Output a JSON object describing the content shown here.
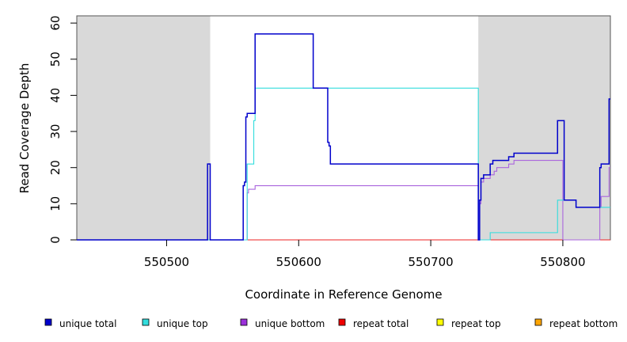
{
  "chart_data": {
    "type": "line",
    "xlabel": "Coordinate in Reference Genome",
    "ylabel": "Read Coverage Depth",
    "xlim": [
      550432,
      550836
    ],
    "ylim": [
      0,
      62
    ],
    "x_ticks": [
      550500,
      550600,
      550700,
      550800
    ],
    "y_ticks": [
      0,
      10,
      20,
      30,
      40,
      50,
      60
    ],
    "shaded_regions": [
      [
        550432,
        550533
      ],
      [
        550736,
        550836
      ]
    ],
    "shade_color": "#d9d9d9",
    "series": [
      {
        "name": "unique total",
        "color": "#0000cc",
        "steps": [
          [
            550432,
            0
          ],
          [
            550557,
            0
          ],
          [
            550558,
            15
          ],
          [
            550559,
            16
          ],
          [
            550560,
            34
          ],
          [
            550561,
            35
          ],
          [
            550567,
            57
          ],
          [
            550611,
            42
          ],
          [
            550622,
            27
          ],
          [
            550623,
            26
          ],
          [
            550624,
            21
          ],
          [
            550531,
            21
          ],
          [
            550533,
            0
          ],
          [
            550736,
            0
          ],
          [
            550737,
            11
          ],
          [
            550738,
            17
          ],
          [
            550740,
            18
          ],
          [
            550745,
            21
          ],
          [
            550747,
            22
          ],
          [
            550759,
            23
          ],
          [
            550763,
            24
          ],
          [
            550796,
            33
          ],
          [
            550801,
            11
          ],
          [
            550810,
            9
          ],
          [
            550828,
            20
          ],
          [
            550829,
            21
          ],
          [
            550835,
            39
          ]
        ]
      },
      {
        "name": "unique top",
        "color": "#33dddd",
        "steps": [
          [
            550432,
            0
          ],
          [
            550560,
            0
          ],
          [
            550561,
            21
          ],
          [
            550566,
            33
          ],
          [
            550567,
            42
          ],
          [
            550533,
            0
          ],
          [
            550736,
            0
          ],
          [
            550745,
            2
          ],
          [
            550796,
            11
          ],
          [
            550801,
            11
          ],
          [
            550810,
            9
          ],
          [
            550835,
            9
          ]
        ]
      },
      {
        "name": "unique bottom",
        "color": "#aa66dd",
        "steps": [
          [
            550432,
            0
          ],
          [
            550560,
            0
          ],
          [
            550561,
            13
          ],
          [
            550562,
            14
          ],
          [
            550567,
            15
          ],
          [
            550511,
            0
          ],
          [
            550736,
            0
          ],
          [
            550737,
            10
          ],
          [
            550738,
            16
          ],
          [
            550740,
            17
          ],
          [
            550745,
            18
          ],
          [
            550748,
            19
          ],
          [
            550750,
            20
          ],
          [
            550759,
            21
          ],
          [
            550763,
            22
          ],
          [
            550800,
            0
          ],
          [
            550828,
            9
          ],
          [
            550829,
            12
          ],
          [
            550835,
            20
          ]
        ]
      },
      {
        "name": "repeat total",
        "color": "#ee2222",
        "steps": [
          [
            550432,
            0
          ],
          [
            550836,
            0
          ]
        ]
      },
      {
        "name": "repeat top",
        "color": "#eeee22",
        "steps": [
          [
            550432,
            0
          ],
          [
            550836,
            0
          ]
        ]
      },
      {
        "name": "repeat bottom",
        "color": "#ffa500",
        "steps": [
          [
            550432,
            0
          ],
          [
            550836,
            0
          ]
        ]
      }
    ],
    "legend": {
      "placement": "bottom",
      "entries": [
        {
          "label": "unique total",
          "color": "#0000cc"
        },
        {
          "label": "unique top",
          "color": "#33dddd"
        },
        {
          "label": "unique bottom",
          "color": "#9b30d9"
        },
        {
          "label": "repeat total",
          "color": "#ee0000"
        },
        {
          "label": "repeat top",
          "color": "#ffff00"
        },
        {
          "label": "repeat bottom",
          "color": "#ffa500"
        }
      ]
    }
  }
}
